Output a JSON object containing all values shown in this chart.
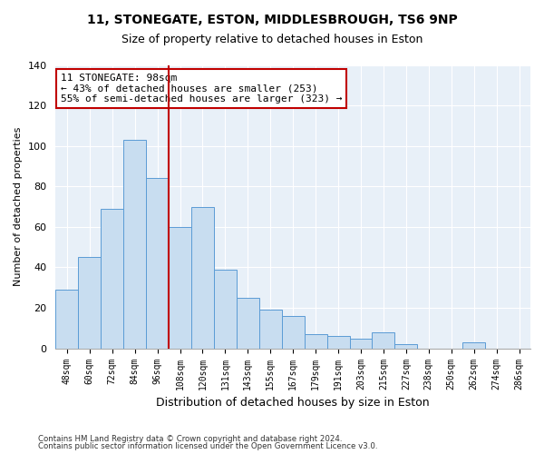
{
  "title": "11, STONEGATE, ESTON, MIDDLESBROUGH, TS6 9NP",
  "subtitle": "Size of property relative to detached houses in Eston",
  "xlabel": "Distribution of detached houses by size in Eston",
  "ylabel": "Number of detached properties",
  "categories": [
    "48sqm",
    "60sqm",
    "72sqm",
    "84sqm",
    "96sqm",
    "108sqm",
    "120sqm",
    "131sqm",
    "143sqm",
    "155sqm",
    "167sqm",
    "179sqm",
    "191sqm",
    "203sqm",
    "215sqm",
    "227sqm",
    "238sqm",
    "250sqm",
    "262sqm",
    "274sqm",
    "286sqm"
  ],
  "values": [
    29,
    45,
    69,
    103,
    84,
    60,
    70,
    39,
    25,
    19,
    16,
    7,
    6,
    5,
    8,
    2,
    0,
    0,
    3,
    0,
    0
  ],
  "bar_color": "#c8ddf0",
  "bar_edge_color": "#5b9bd5",
  "highlight_line_color": "#c00000",
  "annotation_text": "11 STONEGATE: 98sqm\n← 43% of detached houses are smaller (253)\n55% of semi-detached houses are larger (323) →",
  "annotation_box_color": "#ffffff",
  "annotation_box_edge_color": "#c00000",
  "ylim": [
    0,
    140
  ],
  "yticks": [
    0,
    20,
    40,
    60,
    80,
    100,
    120,
    140
  ],
  "footnote1": "Contains HM Land Registry data © Crown copyright and database right 2024.",
  "footnote2": "Contains public sector information licensed under the Open Government Licence v3.0.",
  "bg_color": "#ffffff",
  "plot_bg_color": "#e8f0f8",
  "grid_color": "#ffffff",
  "highlight_bar_index": 4
}
